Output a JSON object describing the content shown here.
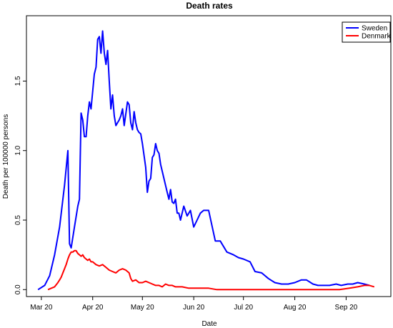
{
  "chart_data": {
    "type": "line",
    "title": "Death rates",
    "xlabel": "Date",
    "ylabel": "Death per 100000 persons",
    "xlim": [
      "2020-02-21",
      "2020-09-28"
    ],
    "ylim": [
      -0.05,
      1.97
    ],
    "x_ticks": [
      {
        "date": "2020-03-01",
        "label": "Mar 20"
      },
      {
        "date": "2020-04-01",
        "label": "Apr 20"
      },
      {
        "date": "2020-05-01",
        "label": "May 20"
      },
      {
        "date": "2020-06-01",
        "label": "Jun 20"
      },
      {
        "date": "2020-07-01",
        "label": "Jul 20"
      },
      {
        "date": "2020-08-01",
        "label": "Aug 20"
      },
      {
        "date": "2020-09-01",
        "label": "Sep 20"
      }
    ],
    "y_ticks": [
      {
        "value": 0.0,
        "label": "0.0"
      },
      {
        "value": 0.5,
        "label": "0.5"
      },
      {
        "value": 1.0,
        "label": "1.0"
      },
      {
        "value": 1.5,
        "label": "1.5"
      }
    ],
    "grid": false,
    "legend_position": "top-right",
    "series": [
      {
        "name": "Sweden",
        "color": "#0000ff",
        "points": [
          [
            "2020-02-28",
            0.0
          ],
          [
            "2020-03-03",
            0.03
          ],
          [
            "2020-03-06",
            0.1
          ],
          [
            "2020-03-09",
            0.25
          ],
          [
            "2020-03-12",
            0.45
          ],
          [
            "2020-03-15",
            0.75
          ],
          [
            "2020-03-17",
            1.0
          ],
          [
            "2020-03-18",
            0.33
          ],
          [
            "2020-03-19",
            0.3
          ],
          [
            "2020-03-21",
            0.45
          ],
          [
            "2020-03-23",
            0.6
          ],
          [
            "2020-03-24",
            0.65
          ],
          [
            "2020-03-25",
            1.27
          ],
          [
            "2020-03-26",
            1.22
          ],
          [
            "2020-03-27",
            1.1
          ],
          [
            "2020-03-28",
            1.1
          ],
          [
            "2020-03-29",
            1.25
          ],
          [
            "2020-03-30",
            1.35
          ],
          [
            "2020-03-31",
            1.3
          ],
          [
            "2020-04-02",
            1.55
          ],
          [
            "2020-04-03",
            1.6
          ],
          [
            "2020-04-04",
            1.8
          ],
          [
            "2020-04-05",
            1.82
          ],
          [
            "2020-04-06",
            1.7
          ],
          [
            "2020-04-07",
            1.86
          ],
          [
            "2020-04-08",
            1.7
          ],
          [
            "2020-04-09",
            1.62
          ],
          [
            "2020-04-10",
            1.72
          ],
          [
            "2020-04-11",
            1.5
          ],
          [
            "2020-04-12",
            1.3
          ],
          [
            "2020-04-13",
            1.4
          ],
          [
            "2020-04-14",
            1.25
          ],
          [
            "2020-04-15",
            1.18
          ],
          [
            "2020-04-16",
            1.2
          ],
          [
            "2020-04-17",
            1.22
          ],
          [
            "2020-04-18",
            1.25
          ],
          [
            "2020-04-19",
            1.3
          ],
          [
            "2020-04-20",
            1.18
          ],
          [
            "2020-04-22",
            1.35
          ],
          [
            "2020-04-23",
            1.33
          ],
          [
            "2020-04-24",
            1.2
          ],
          [
            "2020-04-25",
            1.15
          ],
          [
            "2020-04-26",
            1.28
          ],
          [
            "2020-04-27",
            1.2
          ],
          [
            "2020-04-28",
            1.15
          ],
          [
            "2020-04-29",
            1.13
          ],
          [
            "2020-04-30",
            1.12
          ],
          [
            "2020-05-01",
            1.05
          ],
          [
            "2020-05-03",
            0.88
          ],
          [
            "2020-05-04",
            0.7
          ],
          [
            "2020-05-05",
            0.78
          ],
          [
            "2020-05-06",
            0.8
          ],
          [
            "2020-05-07",
            0.95
          ],
          [
            "2020-05-08",
            0.97
          ],
          [
            "2020-05-09",
            1.05
          ],
          [
            "2020-05-10",
            1.0
          ],
          [
            "2020-05-11",
            0.98
          ],
          [
            "2020-05-12",
            0.9
          ],
          [
            "2020-05-13",
            0.85
          ],
          [
            "2020-05-15",
            0.75
          ],
          [
            "2020-05-16",
            0.7
          ],
          [
            "2020-05-17",
            0.65
          ],
          [
            "2020-05-18",
            0.72
          ],
          [
            "2020-05-19",
            0.63
          ],
          [
            "2020-05-20",
            0.62
          ],
          [
            "2020-05-21",
            0.65
          ],
          [
            "2020-05-22",
            0.55
          ],
          [
            "2020-05-23",
            0.55
          ],
          [
            "2020-05-24",
            0.5
          ],
          [
            "2020-05-26",
            0.6
          ],
          [
            "2020-05-28",
            0.53
          ],
          [
            "2020-05-30",
            0.57
          ],
          [
            "2020-06-01",
            0.45
          ],
          [
            "2020-06-03",
            0.5
          ],
          [
            "2020-06-05",
            0.55
          ],
          [
            "2020-06-07",
            0.57
          ],
          [
            "2020-06-10",
            0.57
          ],
          [
            "2020-06-14",
            0.35
          ],
          [
            "2020-06-17",
            0.35
          ],
          [
            "2020-06-21",
            0.27
          ],
          [
            "2020-06-25",
            0.25
          ],
          [
            "2020-06-28",
            0.23
          ],
          [
            "2020-07-01",
            0.22
          ],
          [
            "2020-07-05",
            0.2
          ],
          [
            "2020-07-08",
            0.13
          ],
          [
            "2020-07-12",
            0.12
          ],
          [
            "2020-07-16",
            0.08
          ],
          [
            "2020-07-20",
            0.05
          ],
          [
            "2020-07-24",
            0.04
          ],
          [
            "2020-07-28",
            0.04
          ],
          [
            "2020-08-01",
            0.05
          ],
          [
            "2020-08-05",
            0.07
          ],
          [
            "2020-08-08",
            0.07
          ],
          [
            "2020-08-12",
            0.04
          ],
          [
            "2020-08-15",
            0.03
          ],
          [
            "2020-08-19",
            0.03
          ],
          [
            "2020-08-22",
            0.03
          ],
          [
            "2020-08-26",
            0.04
          ],
          [
            "2020-08-29",
            0.03
          ],
          [
            "2020-09-02",
            0.04
          ],
          [
            "2020-09-05",
            0.04
          ],
          [
            "2020-09-08",
            0.05
          ],
          [
            "2020-09-12",
            0.04
          ],
          [
            "2020-09-15",
            0.03
          ]
        ]
      },
      {
        "name": "Denmark",
        "color": "#ff0000",
        "points": [
          [
            "2020-03-05",
            0.0
          ],
          [
            "2020-03-07",
            0.01
          ],
          [
            "2020-03-09",
            0.02
          ],
          [
            "2020-03-11",
            0.05
          ],
          [
            "2020-03-12",
            0.07
          ],
          [
            "2020-03-13",
            0.09
          ],
          [
            "2020-03-14",
            0.12
          ],
          [
            "2020-03-15",
            0.15
          ],
          [
            "2020-03-16",
            0.18
          ],
          [
            "2020-03-17",
            0.22
          ],
          [
            "2020-03-18",
            0.25
          ],
          [
            "2020-03-19",
            0.27
          ],
          [
            "2020-03-20",
            0.27
          ],
          [
            "2020-03-21",
            0.28
          ],
          [
            "2020-03-22",
            0.28
          ],
          [
            "2020-03-23",
            0.26
          ],
          [
            "2020-03-24",
            0.25
          ],
          [
            "2020-03-25",
            0.24
          ],
          [
            "2020-03-26",
            0.25
          ],
          [
            "2020-03-27",
            0.23
          ],
          [
            "2020-03-28",
            0.22
          ],
          [
            "2020-03-29",
            0.21
          ],
          [
            "2020-03-30",
            0.22
          ],
          [
            "2020-03-31",
            0.2
          ],
          [
            "2020-04-01",
            0.2
          ],
          [
            "2020-04-03",
            0.18
          ],
          [
            "2020-04-05",
            0.17
          ],
          [
            "2020-04-07",
            0.18
          ],
          [
            "2020-04-09",
            0.16
          ],
          [
            "2020-04-11",
            0.14
          ],
          [
            "2020-04-13",
            0.13
          ],
          [
            "2020-04-15",
            0.12
          ],
          [
            "2020-04-17",
            0.14
          ],
          [
            "2020-04-19",
            0.15
          ],
          [
            "2020-04-21",
            0.14
          ],
          [
            "2020-04-23",
            0.12
          ],
          [
            "2020-04-24",
            0.08
          ],
          [
            "2020-04-25",
            0.06
          ],
          [
            "2020-04-27",
            0.07
          ],
          [
            "2020-04-29",
            0.05
          ],
          [
            "2020-05-01",
            0.05
          ],
          [
            "2020-05-03",
            0.06
          ],
          [
            "2020-05-05",
            0.05
          ],
          [
            "2020-05-07",
            0.04
          ],
          [
            "2020-05-09",
            0.03
          ],
          [
            "2020-05-11",
            0.03
          ],
          [
            "2020-05-13",
            0.02
          ],
          [
            "2020-05-15",
            0.04
          ],
          [
            "2020-05-17",
            0.03
          ],
          [
            "2020-05-19",
            0.03
          ],
          [
            "2020-05-21",
            0.02
          ],
          [
            "2020-05-25",
            0.02
          ],
          [
            "2020-05-29",
            0.01
          ],
          [
            "2020-06-02",
            0.01
          ],
          [
            "2020-06-06",
            0.01
          ],
          [
            "2020-06-10",
            0.01
          ],
          [
            "2020-06-15",
            0.0
          ],
          [
            "2020-06-20",
            0.0
          ],
          [
            "2020-06-30",
            0.0
          ],
          [
            "2020-07-10",
            0.0
          ],
          [
            "2020-07-20",
            0.0
          ],
          [
            "2020-08-01",
            0.0
          ],
          [
            "2020-08-10",
            0.0
          ],
          [
            "2020-08-20",
            0.0
          ],
          [
            "2020-08-28",
            0.0
          ],
          [
            "2020-09-03",
            0.01
          ],
          [
            "2020-09-08",
            0.02
          ],
          [
            "2020-09-12",
            0.03
          ],
          [
            "2020-09-15",
            0.03
          ],
          [
            "2020-09-18",
            0.02
          ]
        ]
      }
    ]
  }
}
